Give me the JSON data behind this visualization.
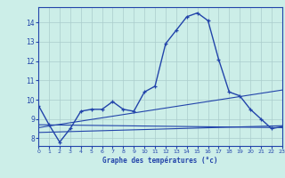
{
  "x": [
    0,
    1,
    2,
    3,
    4,
    5,
    6,
    7,
    8,
    9,
    10,
    11,
    12,
    13,
    14,
    15,
    16,
    17,
    18,
    19,
    20,
    21,
    22,
    23
  ],
  "temp": [
    9.7,
    8.7,
    7.8,
    8.5,
    9.4,
    9.5,
    9.5,
    9.9,
    9.5,
    9.4,
    10.4,
    10.7,
    12.9,
    13.6,
    14.3,
    14.5,
    14.1,
    12.1,
    10.4,
    10.2,
    9.5,
    9.0,
    8.5,
    8.6
  ],
  "line1_x": [
    0,
    23
  ],
  "line1_y": [
    8.7,
    8.55
  ],
  "line2_x": [
    0,
    23
  ],
  "line2_y": [
    8.55,
    10.5
  ],
  "line3_x": [
    0,
    23
  ],
  "line3_y": [
    8.3,
    8.65
  ],
  "bg_color": "#cceee8",
  "grid_color": "#aacccc",
  "line_color": "#2244aa",
  "axis_color": "#2244aa",
  "xlabel": "Graphe des températures (°c)",
  "ylabel_ticks": [
    8,
    9,
    10,
    11,
    12,
    13,
    14
  ],
  "xlim": [
    0,
    23
  ],
  "ylim": [
    7.6,
    14.8
  ],
  "xticks": [
    0,
    1,
    2,
    3,
    4,
    5,
    6,
    7,
    8,
    9,
    10,
    11,
    12,
    13,
    14,
    15,
    16,
    17,
    18,
    19,
    20,
    21,
    22,
    23
  ]
}
